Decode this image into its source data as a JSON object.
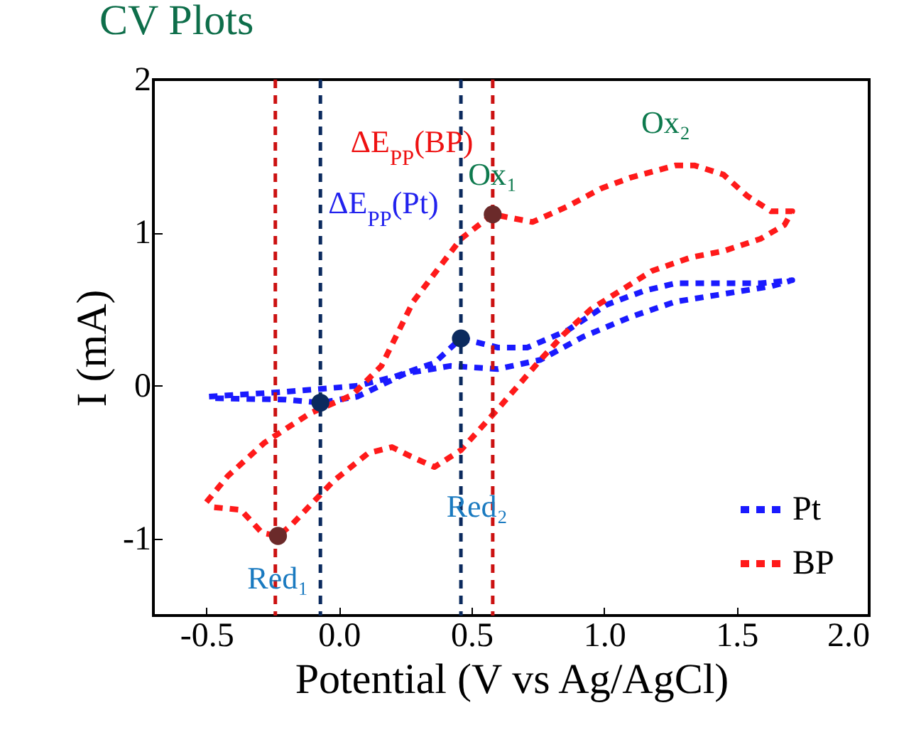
{
  "chart_data": {
    "type": "line",
    "title": "CV Plots",
    "xlabel": "Potential (V vs Ag/AgCl)",
    "ylabel": "I (mA)",
    "xlim": [
      -0.7,
      2.0
    ],
    "xticks": [
      -0.5,
      {
        "value": 0,
        "label": "0.0"
      },
      0.5,
      {
        "value": 1,
        "label": "1.0"
      },
      1.5,
      {
        "value": 2,
        "label": "2.0"
      }
    ],
    "ylim": [
      -1.5,
      2
    ],
    "yticks": [
      -1,
      0,
      1,
      2
    ],
    "grid": false,
    "legend": "bottom right",
    "line_style": "dashed",
    "series": [
      {
        "name": "Pt",
        "color": "#1a1aff",
        "x": [
          -0.49,
          -0.21,
          0.07,
          0.21,
          0.36,
          0.46,
          0.6,
          0.71,
          0.86,
          1.01,
          1.15,
          1.27,
          1.45,
          1.59,
          1.71,
          1.63,
          1.45,
          1.27,
          1.1,
          0.92,
          0.76,
          0.6,
          0.42,
          0.25,
          0.07,
          -0.07,
          -0.2,
          -0.49
        ],
        "values": [
          -0.07,
          -0.04,
          0.0,
          0.06,
          0.15,
          0.31,
          0.25,
          0.25,
          0.36,
          0.53,
          0.62,
          0.67,
          0.67,
          0.67,
          0.69,
          0.65,
          0.6,
          0.55,
          0.45,
          0.32,
          0.17,
          0.11,
          0.13,
          0.08,
          -0.07,
          -0.11,
          -0.09,
          -0.08
        ]
      },
      {
        "name": "BP",
        "color": "#ff1a1a",
        "x": [
          -0.5,
          -0.42,
          -0.28,
          -0.11,
          0.05,
          0.16,
          0.28,
          0.46,
          0.58,
          0.73,
          0.86,
          0.99,
          1.1,
          1.27,
          1.34,
          1.45,
          1.54,
          1.63,
          1.71,
          1.68,
          1.59,
          1.45,
          1.33,
          1.18,
          1.06,
          0.95,
          0.85,
          0.76,
          0.6,
          0.46,
          0.36,
          0.27,
          0.2,
          0.11,
          -0.02,
          -0.18,
          -0.23,
          -0.29,
          -0.37,
          -0.49
        ],
        "values": [
          -0.76,
          -0.59,
          -0.37,
          -0.18,
          -0.06,
          0.13,
          0.55,
          0.96,
          1.12,
          1.07,
          1.17,
          1.29,
          1.36,
          1.44,
          1.44,
          1.38,
          1.24,
          1.14,
          1.14,
          1.05,
          0.96,
          0.88,
          0.84,
          0.75,
          0.62,
          0.5,
          0.34,
          0.17,
          -0.15,
          -0.42,
          -0.53,
          -0.46,
          -0.4,
          -0.44,
          -0.62,
          -0.91,
          -0.98,
          -0.96,
          -0.81,
          -0.79
        ]
      },
      {
        "type": "scatter",
        "color": "#0b2a5e",
        "marker": "circle",
        "x": [
          -0.07,
          0.46
        ],
        "values": [
          -0.11,
          0.31
        ]
      },
      {
        "type": "scatter",
        "color": "#6b2a2a",
        "marker": "circle",
        "x": [
          -0.23,
          0.58
        ],
        "values": [
          -0.98,
          1.12
        ]
      }
    ],
    "ref_lines": [
      {
        "axis": "x",
        "value": -0.24,
        "color": "#cc1111",
        "line_style": "dashed"
      },
      {
        "axis": "x",
        "value": 0.58,
        "color": "#cc1111",
        "line_style": "dashed"
      },
      {
        "axis": "x",
        "value": -0.07,
        "color": "#0b2a5e",
        "line_style": "dashed"
      },
      {
        "axis": "x",
        "value": 0.46,
        "color": "#0b2a5e",
        "line_style": "dashed"
      }
    ],
    "annotations": [
      "ΔE$_{PP}$(BP)",
      "ΔE$_{PP}$(Pt)",
      {
        "text": "Ox₁",
        "x": 0.58,
        "y": 1.12
      },
      {
        "text": "Ox₂",
        "x": 1.34,
        "y": 1.44
      },
      {
        "text": "Red₁",
        "x": -0.23,
        "y": -0.98
      },
      {
        "text": "Red₂",
        "x": 0.36,
        "y": -0.53
      }
    ]
  }
}
